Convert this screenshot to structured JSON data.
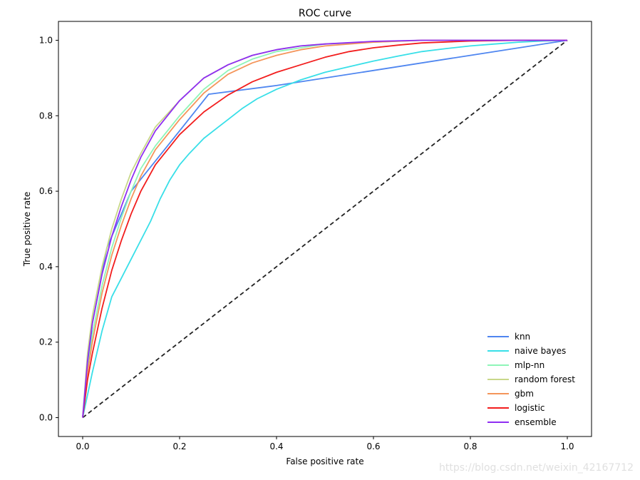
{
  "chart_data": {
    "type": "line",
    "title": "ROC curve",
    "xlabel": "False positive rate",
    "ylabel": "True positive rate",
    "xlim": [
      -0.05,
      1.05
    ],
    "ylim": [
      -0.05,
      1.05
    ],
    "xticks": [
      0.0,
      0.2,
      0.4,
      0.6,
      0.8,
      1.0
    ],
    "yticks": [
      0.0,
      0.2,
      0.4,
      0.6,
      0.8,
      1.0
    ],
    "tick_labels": [
      "0.0",
      "0.2",
      "0.4",
      "0.6",
      "0.8",
      "1.0"
    ],
    "grid": false,
    "legend_position": "lower right",
    "diagonal": {
      "x": [
        0,
        1
      ],
      "y": [
        0,
        1
      ],
      "color": "#222222",
      "style": "dashed"
    },
    "series": [
      {
        "name": "knn",
        "color": "#4f86f0",
        "x": [
          0,
          0.02,
          0.05,
          0.1,
          0.15,
          0.2,
          0.26,
          0.4,
          0.6,
          0.8,
          1.0
        ],
        "y": [
          0,
          0.25,
          0.45,
          0.6,
          0.68,
          0.76,
          0.857,
          0.88,
          0.92,
          0.96,
          1.0
        ]
      },
      {
        "name": "naive bayes",
        "color": "#38dfe8",
        "x": [
          0,
          0.02,
          0.04,
          0.06,
          0.08,
          0.1,
          0.12,
          0.14,
          0.16,
          0.18,
          0.2,
          0.22,
          0.25,
          0.28,
          0.3,
          0.33,
          0.36,
          0.4,
          0.45,
          0.5,
          0.55,
          0.6,
          0.65,
          0.7,
          0.75,
          0.8,
          0.85,
          0.9,
          0.95,
          1.0
        ],
        "y": [
          0,
          0.12,
          0.23,
          0.32,
          0.37,
          0.42,
          0.47,
          0.52,
          0.58,
          0.63,
          0.67,
          0.7,
          0.74,
          0.77,
          0.79,
          0.82,
          0.845,
          0.87,
          0.895,
          0.915,
          0.93,
          0.945,
          0.958,
          0.97,
          0.978,
          0.985,
          0.99,
          0.995,
          0.998,
          1.0
        ]
      },
      {
        "name": "mlp-nn",
        "color": "#8ef5b8",
        "x": [
          0,
          0.01,
          0.02,
          0.04,
          0.06,
          0.08,
          0.1,
          0.12,
          0.15,
          0.2,
          0.25,
          0.3,
          0.35,
          0.4,
          0.45,
          0.5,
          0.6,
          0.7,
          0.8,
          0.9,
          1.0
        ],
        "y": [
          0,
          0.12,
          0.22,
          0.35,
          0.45,
          0.53,
          0.6,
          0.66,
          0.72,
          0.8,
          0.87,
          0.92,
          0.95,
          0.97,
          0.98,
          0.99,
          0.995,
          1.0,
          1.0,
          1.0,
          1.0
        ]
      },
      {
        "name": "random forest",
        "color": "#c9d88a",
        "x": [
          0,
          0.01,
          0.02,
          0.04,
          0.06,
          0.08,
          0.1,
          0.12,
          0.15,
          0.2,
          0.25,
          0.3,
          0.35,
          0.4,
          0.45,
          0.5,
          0.6,
          0.7,
          0.8,
          0.9,
          1.0
        ],
        "y": [
          0,
          0.17,
          0.27,
          0.4,
          0.5,
          0.58,
          0.65,
          0.7,
          0.77,
          0.84,
          0.9,
          0.935,
          0.96,
          0.975,
          0.985,
          0.99,
          0.996,
          1.0,
          1.0,
          1.0,
          1.0
        ]
      },
      {
        "name": "gbm",
        "color": "#f4955a",
        "x": [
          0,
          0.01,
          0.02,
          0.04,
          0.06,
          0.08,
          0.1,
          0.12,
          0.15,
          0.2,
          0.25,
          0.3,
          0.35,
          0.4,
          0.45,
          0.5,
          0.6,
          0.7,
          0.8,
          0.9,
          1.0
        ],
        "y": [
          0,
          0.12,
          0.2,
          0.33,
          0.43,
          0.51,
          0.58,
          0.64,
          0.71,
          0.79,
          0.86,
          0.91,
          0.94,
          0.96,
          0.975,
          0.985,
          0.995,
          1.0,
          1.0,
          1.0,
          1.0
        ]
      },
      {
        "name": "logistic",
        "color": "#f21d1d",
        "x": [
          0,
          0.01,
          0.02,
          0.04,
          0.06,
          0.08,
          0.1,
          0.12,
          0.15,
          0.2,
          0.25,
          0.3,
          0.35,
          0.4,
          0.45,
          0.5,
          0.55,
          0.6,
          0.65,
          0.7,
          0.8,
          0.9,
          1.0
        ],
        "y": [
          0,
          0.1,
          0.17,
          0.29,
          0.39,
          0.47,
          0.54,
          0.6,
          0.67,
          0.75,
          0.81,
          0.855,
          0.89,
          0.915,
          0.935,
          0.955,
          0.97,
          0.98,
          0.987,
          0.993,
          0.998,
          1.0,
          1.0
        ]
      },
      {
        "name": "ensemble",
        "color": "#8f2ef2",
        "x": [
          0,
          0.01,
          0.02,
          0.04,
          0.06,
          0.08,
          0.1,
          0.12,
          0.15,
          0.2,
          0.25,
          0.3,
          0.35,
          0.4,
          0.45,
          0.5,
          0.6,
          0.7,
          0.8,
          0.9,
          1.0
        ],
        "y": [
          0,
          0.15,
          0.25,
          0.38,
          0.48,
          0.56,
          0.63,
          0.69,
          0.76,
          0.84,
          0.9,
          0.935,
          0.96,
          0.975,
          0.985,
          0.99,
          0.997,
          1.0,
          1.0,
          1.0,
          1.0
        ]
      }
    ]
  },
  "watermark": "https://blog.csdn.net/weixin_42167712"
}
